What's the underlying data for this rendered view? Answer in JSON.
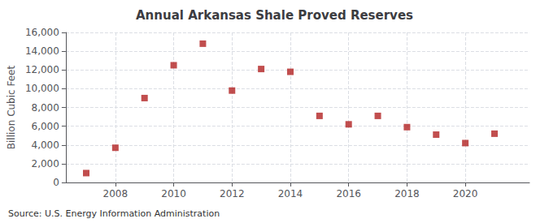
{
  "chart_data": {
    "type": "scatter",
    "title": "Annual Arkansas Shale Proved Reserves",
    "ylabel": "Billion Cubic Feet",
    "annotations": [
      "Source: U.S. Energy Information Administration"
    ],
    "x": [
      2007,
      2008,
      2009,
      2010,
      2011,
      2012,
      2013,
      2014,
      2015,
      2016,
      2017,
      2018,
      2019,
      2020,
      2021
    ],
    "values": [
      1000,
      3700,
      9000,
      12500,
      14800,
      9800,
      12100,
      11800,
      7100,
      6200,
      7100,
      5900,
      5100,
      4200,
      5200
    ],
    "color": "#b22222",
    "marker": "square",
    "xlim": [
      2006.3,
      2022.2
    ],
    "xticks": [
      2008,
      2010,
      2012,
      2014,
      2016,
      2018,
      2020
    ],
    "ylim": [
      0,
      16000
    ],
    "yticks": [
      0,
      {
        "value": 2000,
        "label": "2,000"
      },
      {
        "value": 4000,
        "label": "4,000"
      },
      {
        "value": 6000,
        "label": "6,000"
      },
      {
        "value": 8000,
        "label": "8,000"
      },
      {
        "value": 10000,
        "label": "10,000"
      },
      {
        "value": 12000,
        "label": "12,000"
      },
      {
        "value": 14000,
        "label": "14,000"
      },
      {
        "value": 16000,
        "label": "16,000"
      }
    ],
    "grid": true
  }
}
